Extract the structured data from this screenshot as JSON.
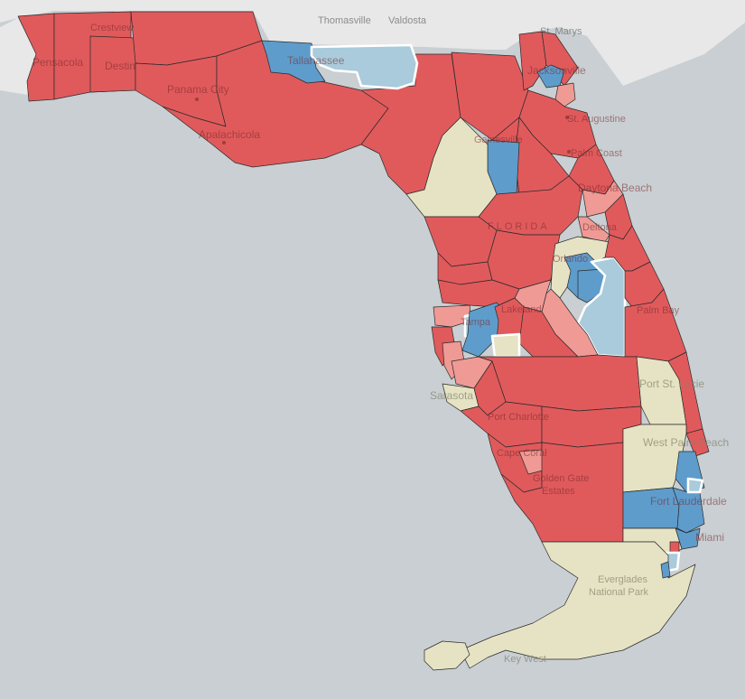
{
  "map": {
    "colors": {
      "water": "#c9cfd2",
      "land": "#e8e8e8",
      "republican": "#e05a5c",
      "lean_republican": "#ef9a95",
      "democrat": "#5e9ccc",
      "lean_democrat": "#a9cbdb",
      "tossup": "#e6e3c4"
    },
    "labels": {
      "thomasville": "Thomasville",
      "valdosta": "Valdosta",
      "st_marys": "St. Marys",
      "crestview": "Crestview",
      "pensacola": "Pensacola",
      "destin": "Destin",
      "panama_city": "Panama City",
      "apalachicola": "Apalachicola",
      "tallahassee": "Tallahassee",
      "jacksonville": "Jacksonville",
      "st_augustine": "St. Augustine",
      "palm_coast": "Palm Coast",
      "gainesville": "Gainesville",
      "daytona_beach": "Daytona Beach",
      "florida": "FLORIDA",
      "deltona": "Deltona",
      "orlando": "Orlando",
      "palm_bay": "Palm Bay",
      "lakeland": "Lakeland",
      "tampa": "Tampa",
      "port_st_lucie": "Port St. Lucie",
      "sarasota": "Sarasota",
      "port_charlotte": "Port Charlotte",
      "west_palm_beach": "West Palm Beach",
      "cape_coral": "Cape Coral",
      "golden_gate_estates": "Golden Gate Estates",
      "fort_lauderdale": "Fort Lauderdale",
      "miami": "Miami",
      "everglades_national_park": "Everglades National Park",
      "key_west": "Key West"
    }
  }
}
